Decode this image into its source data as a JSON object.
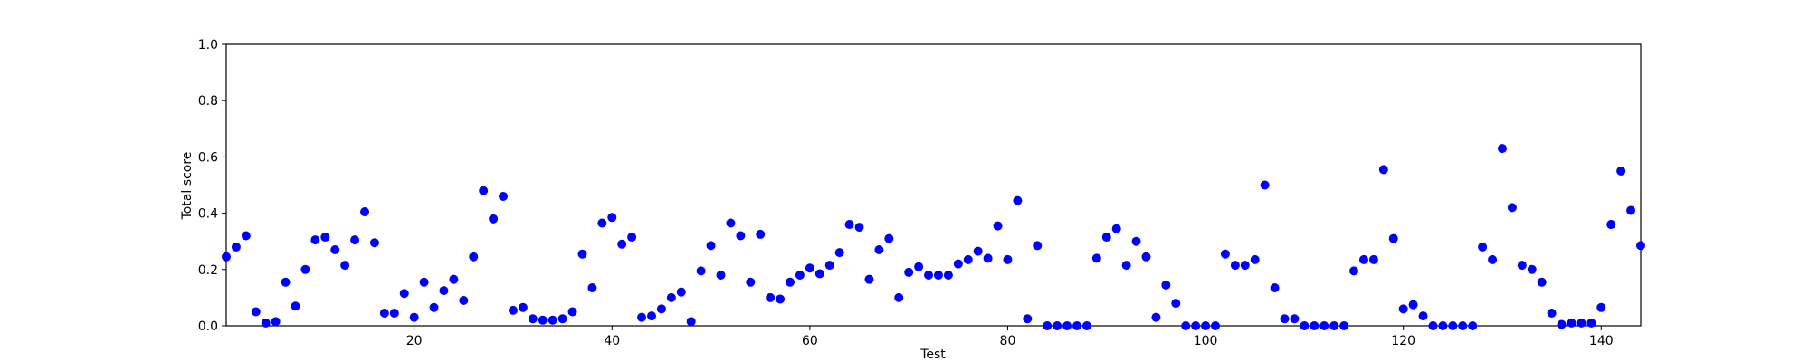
{
  "chart_data": {
    "type": "scatter",
    "xlabel": "Test",
    "ylabel": "Total score",
    "xlim": [
      1,
      144
    ],
    "ylim": [
      0,
      1
    ],
    "xticks": [
      20,
      40,
      60,
      80,
      100,
      120,
      140
    ],
    "yticks": [
      0.0,
      0.2,
      0.4,
      0.6,
      0.8,
      1.0
    ],
    "grid": false,
    "marker_color": "#0000ff",
    "frame_color": "#000000",
    "x": [
      1,
      2,
      3,
      4,
      5,
      6,
      7,
      8,
      9,
      10,
      11,
      12,
      13,
      14,
      15,
      16,
      17,
      18,
      19,
      20,
      21,
      22,
      23,
      24,
      25,
      26,
      27,
      28,
      29,
      30,
      31,
      32,
      33,
      34,
      35,
      36,
      37,
      38,
      39,
      40,
      41,
      42,
      43,
      44,
      45,
      46,
      47,
      48,
      49,
      50,
      51,
      52,
      53,
      54,
      55,
      56,
      57,
      58,
      59,
      60,
      61,
      62,
      63,
      64,
      65,
      66,
      67,
      68,
      69,
      70,
      71,
      72,
      73,
      74,
      75,
      76,
      77,
      78,
      79,
      80,
      81,
      82,
      83,
      84,
      85,
      86,
      87,
      88,
      89,
      90,
      91,
      92,
      93,
      94,
      95,
      96,
      97,
      98,
      99,
      100,
      101,
      102,
      103,
      104,
      105,
      106,
      107,
      108,
      109,
      110,
      111,
      112,
      113,
      114,
      115,
      116,
      117,
      118,
      119,
      120,
      121,
      122,
      123,
      124,
      125,
      126,
      127,
      128,
      129,
      130,
      131,
      132,
      133,
      134,
      135,
      136,
      137,
      138,
      139,
      140,
      141,
      142,
      143,
      144
    ],
    "y": [
      0.245,
      0.28,
      0.32,
      0.05,
      0.01,
      0.015,
      0.155,
      0.07,
      0.2,
      0.305,
      0.315,
      0.27,
      0.215,
      0.305,
      0.405,
      0.295,
      0.045,
      0.045,
      0.115,
      0.03,
      0.155,
      0.065,
      0.125,
      0.165,
      0.09,
      0.245,
      0.48,
      0.38,
      0.46,
      0.055,
      0.065,
      0.025,
      0.02,
      0.02,
      0.025,
      0.05,
      0.255,
      0.135,
      0.365,
      0.385,
      0.29,
      0.315,
      0.03,
      0.035,
      0.06,
      0.1,
      0.12,
      0.015,
      0.195,
      0.285,
      0.18,
      0.365,
      0.32,
      0.155,
      0.325,
      0.1,
      0.095,
      0.155,
      0.18,
      0.205,
      0.185,
      0.215,
      0.26,
      0.36,
      0.35,
      0.165,
      0.27,
      0.31,
      0.1,
      0.19,
      0.21,
      0.18,
      0.18,
      0.18,
      0.22,
      0.235,
      0.265,
      0.24,
      0.355,
      0.235,
      0.445,
      0.025,
      0.285,
      0.0,
      0.0,
      0.0,
      0.0,
      0.0,
      0.24,
      0.315,
      0.345,
      0.215,
      0.3,
      0.245,
      0.03,
      0.145,
      0.08,
      0.0,
      0.0,
      0.0,
      0.0,
      0.255,
      0.215,
      0.215,
      0.235,
      0.5,
      0.135,
      0.025,
      0.025,
      0.0,
      0.0,
      0.0,
      0.0,
      0.0,
      0.195,
      0.235,
      0.235,
      0.555,
      0.31,
      0.06,
      0.075,
      0.035,
      0.0,
      0.0,
      0.0,
      0.0,
      0.0,
      0.28,
      0.235,
      0.63,
      0.42,
      0.215,
      0.2,
      0.155,
      0.045,
      0.005,
      0.01,
      0.01,
      0.01,
      0.065,
      0.36,
      0.55,
      0.41,
      0.285
    ]
  }
}
